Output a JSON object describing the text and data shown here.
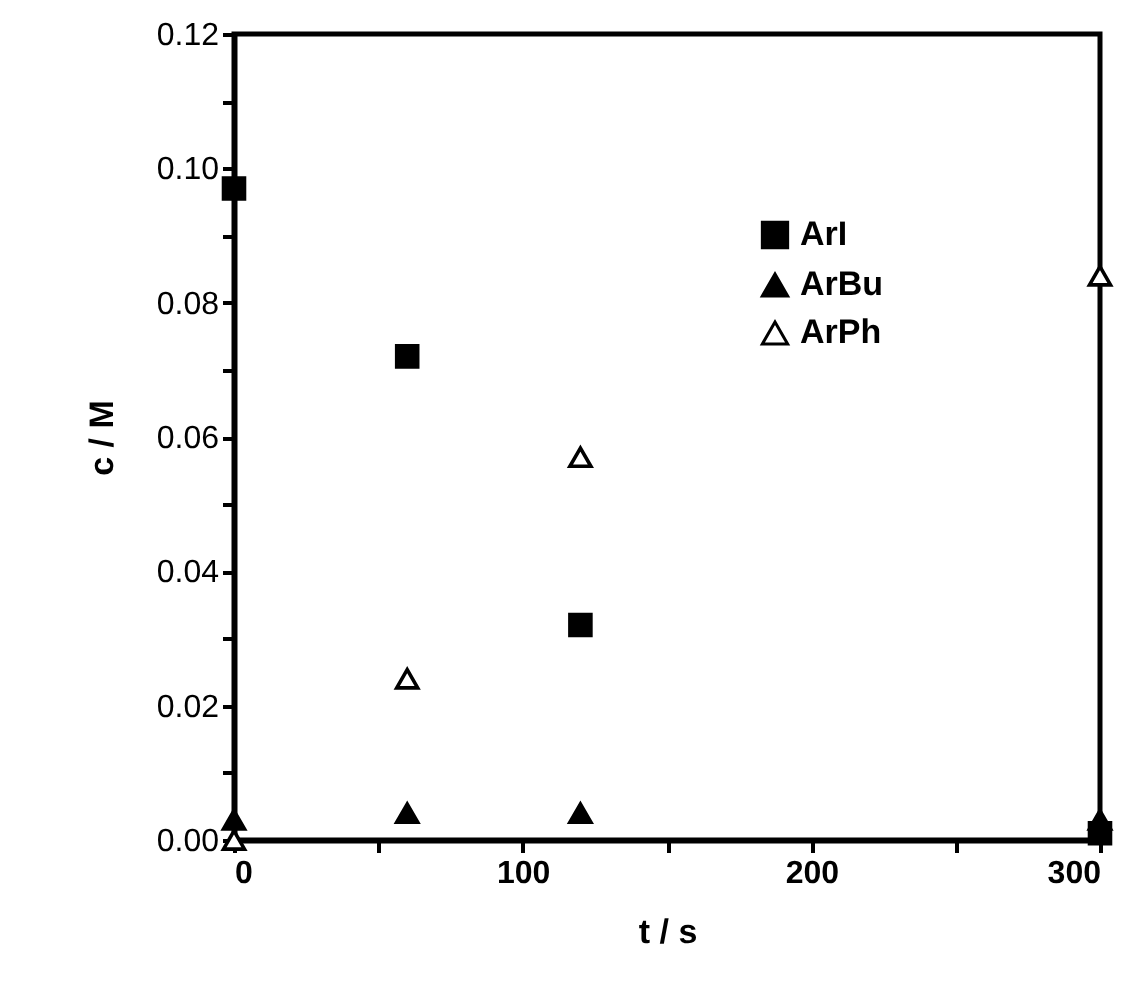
{
  "chart_data": {
    "type": "scatter",
    "xlabel": "t / s",
    "ylabel": "c / M",
    "xlim": [
      0,
      300
    ],
    "xticks": [
      0,
      {
        "value": 50,
        "label": null
      },
      100,
      {
        "value": 150,
        "label": null
      },
      200,
      {
        "value": 250,
        "label": null
      },
      300
    ],
    "ylim": [
      0,
      0.12
    ],
    "yticks": [
      {
        "value": 0,
        "label": "0.00"
      },
      {
        "value": 0.01,
        "label": null
      },
      {
        "value": 0.02,
        "label": "0.02"
      },
      {
        "value": 0.03,
        "label": null
      },
      {
        "value": 0.04,
        "label": "0.04"
      },
      {
        "value": 0.05,
        "label": null
      },
      {
        "value": 0.06,
        "label": "0.06"
      },
      {
        "value": 0.07,
        "label": null
      },
      {
        "value": 0.08,
        "label": "0.08"
      },
      {
        "value": 0.09,
        "label": null
      },
      {
        "value": 0.1,
        "label": "0.10"
      },
      {
        "value": 0.11,
        "label": null
      },
      {
        "value": 0.12,
        "label": "0.12"
      }
    ],
    "grid": false,
    "legend": "top right",
    "series": [
      {
        "name": "ArI",
        "color": "#000000",
        "marker": "square",
        "x": [
          0,
          60,
          120,
          300
        ],
        "values": [
          0.097,
          0.072,
          0.032,
          0.001
        ]
      },
      {
        "name": "ArBu",
        "color": "#000000",
        "marker": "triangle",
        "x": [
          0,
          60,
          120,
          300
        ],
        "values": [
          0.003,
          0.004,
          0.004,
          0.003
        ]
      },
      {
        "name": "ArPh",
        "color": "#ffffff",
        "marker": "triangle",
        "x": [
          0,
          60,
          120,
          300
        ],
        "values": [
          0.0,
          0.024,
          0.057,
          0.084
        ]
      }
    ]
  }
}
